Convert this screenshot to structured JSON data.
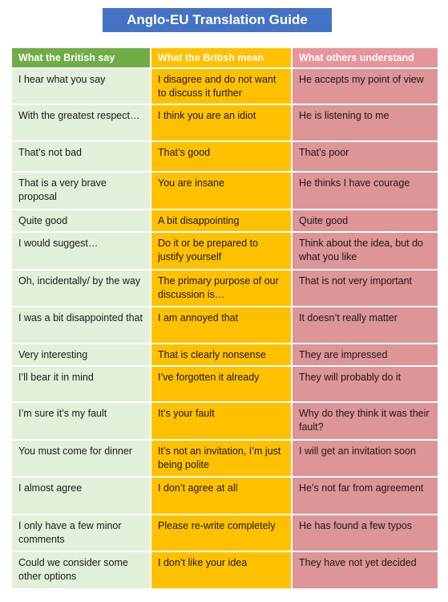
{
  "title": "Anglo-EU Translation Guide",
  "headers": [
    "What the British say",
    "What the British mean",
    "What others understand"
  ],
  "rows": [
    [
      "I hear what you say",
      "I disagree and do not want to discuss it further",
      "He accepts my point of view"
    ],
    [
      "With the greatest respect…",
      "I think you are an idiot",
      "He is listening to me"
    ],
    [
      "That’s not bad",
      "That’s good",
      "That’s poor"
    ],
    [
      "That is a very brave proposal",
      "You are insane",
      "He thinks I have courage"
    ],
    [
      "Quite good",
      "A bit disappointing",
      "Quite good"
    ],
    [
      "I would suggest…",
      "Do it or be prepared to justify yourself",
      "Think about the idea, but do what you like"
    ],
    [
      "Oh, incidentally/ by the way",
      "The primary purpose of our discussion is…",
      "That is not very important"
    ],
    [
      "I was a bit disappointed that",
      "I am annoyed that",
      "It doesn’t really matter"
    ],
    [
      "Very interesting",
      "That is clearly nonsense",
      "They are impressed"
    ],
    [
      "I’ll bear it in mind",
      "I’ve forgotten it already",
      "They will probably do it"
    ],
    [
      "I’m sure it’s my fault",
      "It’s your fault",
      "Why do they think it was their fault?"
    ],
    [
      "You must come for dinner",
      "It’s not an invitation, I’m just being polite",
      "I will get an invitation soon"
    ],
    [
      "I almost agree",
      "I don’t agree at all",
      "He’s not far from agreement"
    ],
    [
      "I only have a few minor comments",
      "Please re-write completely",
      "He has found a few typos"
    ],
    [
      "Could we consider some other options",
      "I don’t like your idea",
      "They have not yet decided"
    ]
  ],
  "colors": {
    "title_bg": "#4472c4",
    "col1_header": "#70ad47",
    "col2_header": "#ffc000",
    "col3_header": "#e6959a",
    "col1_cell": "#e2efd9",
    "col2_cell": "#ffc000",
    "col3_cell": "#dd9597"
  }
}
